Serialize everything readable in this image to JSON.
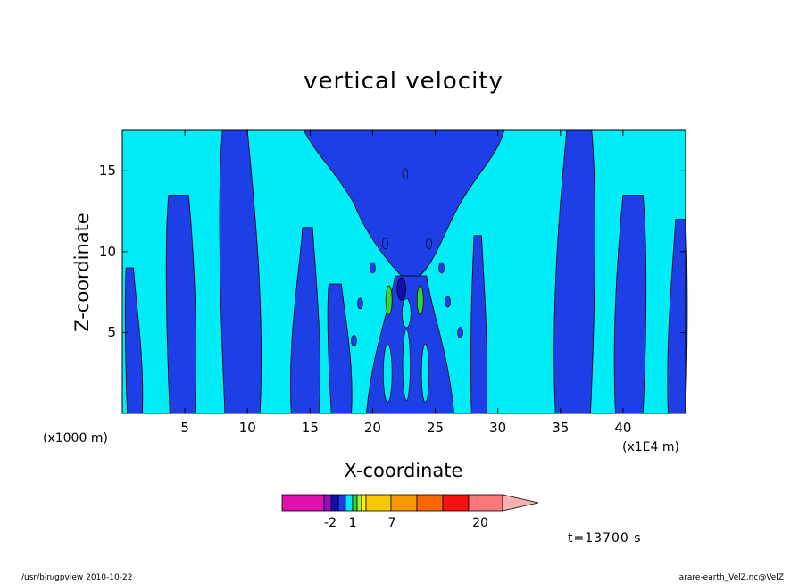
{
  "chart_data": {
    "type": "contour",
    "title": "vertical velocity",
    "xlabel": "X-coordinate",
    "ylabel": "Z-coordinate",
    "x_unit_left": "(x1000 m)",
    "x_unit_right": "(x1E4 m)",
    "xlim": [
      0,
      45
    ],
    "ylim": [
      0,
      17.5
    ],
    "x_ticks": [
      5,
      10,
      15,
      20,
      25,
      30,
      35,
      40
    ],
    "y_ticks": [
      5,
      10,
      15
    ],
    "colorbar": {
      "levels": [
        "-2",
        "1",
        "7",
        "20"
      ],
      "colors": [
        "#e010b0",
        "#9010c0",
        "#1010a8",
        "#1e38e8",
        "#00e8f8",
        "#30d830",
        "#a8f030",
        "#f8f000",
        "#f8c800",
        "#f89800",
        "#f86800",
        "#f81010",
        "#f87878",
        "#f8b0b0"
      ]
    },
    "colors": {
      "dark_blue": "#1e3ee6",
      "cyan": "#00ecf6",
      "navy": "#1010a8",
      "green": "#30d830"
    },
    "timestamp": "t=13700 s",
    "footer_left": "/usr/bin/gpview   2010-10-22",
    "footer_right": "arare-earth_VelZ.nc@VelZ"
  }
}
